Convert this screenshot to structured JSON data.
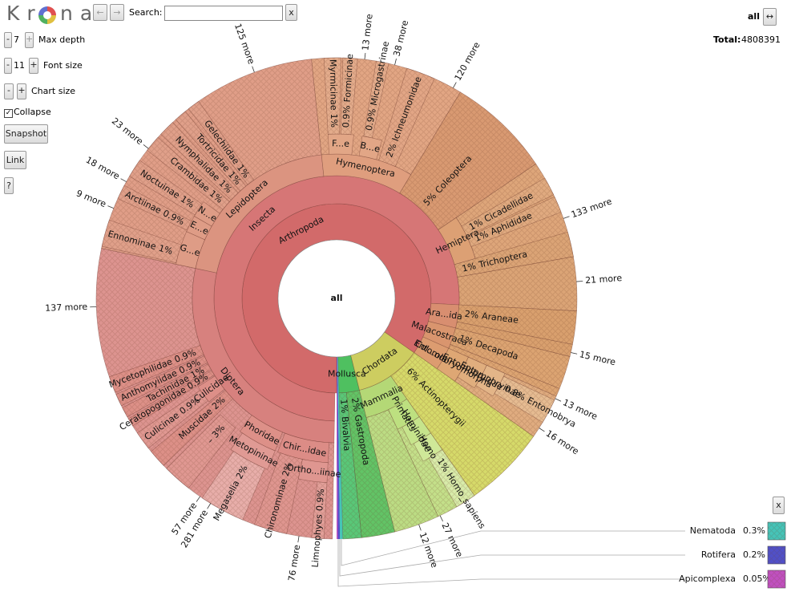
{
  "toolbar": {
    "logo_start": "Kr",
    "logo_end": "na",
    "back": "←",
    "forward": "→",
    "search_label": "Search:",
    "search_clear": "x",
    "root_button": "all",
    "zoom_toggle": "↔",
    "total_label": "Total:",
    "total_value": "4808391"
  },
  "controls": {
    "max_depth": {
      "minus": "-",
      "value": "7",
      "plus": "+",
      "label": "Max depth"
    },
    "font_size": {
      "minus": "-",
      "value": "11",
      "plus": "+",
      "label": "Font size"
    },
    "chart_size": {
      "minus": "-",
      "plus": "+",
      "label": "Chart size"
    },
    "collapse": "Collapse",
    "snapshot": "Snapshot",
    "link": "Link",
    "help": "?"
  },
  "chart": {
    "center": "all",
    "nodes": [
      {
        "label": "Arthropoda"
      },
      {
        "label": "Mollusca"
      },
      {
        "label": "Chordata"
      },
      {
        "label": "Insecta"
      },
      {
        "label": "Ara...ida"
      },
      {
        "label": "Malacostraca"
      },
      {
        "label": "Col...ola"
      },
      {
        "label": "Diptera"
      },
      {
        "label": "Lepidoptera"
      },
      {
        "label": "Hymenoptera"
      },
      {
        "label": "Coleoptera",
        "pct": "5%"
      },
      {
        "label": "Hemiptera"
      },
      {
        "label": "Trichoptera",
        "pct": "1%"
      },
      {
        "label": "Araneae",
        "pct": "2%"
      },
      {
        "label": "Decapoda",
        "pct": "1%"
      },
      {
        "label": "Entomobryomorpha"
      },
      {
        "label": "Entomobryidae"
      },
      {
        "label": "Entomobryinae"
      },
      {
        "label": "Entomobrya",
        "pct": "0.8%"
      },
      {
        "label": "Bivalvia",
        "pct": "1%"
      },
      {
        "label": "Gastropoda",
        "pct": "2%"
      },
      {
        "label": "Mammalia"
      },
      {
        "label": "Primates"
      },
      {
        "label": "Hominidae"
      },
      {
        "label": "Homo"
      },
      {
        "label": "Homo_sapiens",
        "pct": "1%"
      },
      {
        "label": "Actinopterygii",
        "pct": "6%"
      },
      {
        "label": "Culicidae"
      },
      {
        "label": "Phoridae"
      },
      {
        "label": "Metopininae"
      },
      {
        "label": "Megaselia",
        "pct": "2%"
      },
      {
        "label": "Chir...idae"
      },
      {
        "label": "Ortho...iinae"
      },
      {
        "label": "Chironominae",
        "pct": "2%"
      },
      {
        "label": "Limnophyes",
        "pct": "0.9%"
      },
      {
        "label": "Muscidae",
        "pct": "2%"
      },
      {
        "label": "Culicinae",
        "pct": "0.9%"
      },
      {
        "label": "Ceratopogonidae",
        "pct": "0.9%"
      },
      {
        "label": "Tachinidae",
        "pct": "1%"
      },
      {
        "label": "Anthomyiidae",
        "pct": "0.9%"
      },
      {
        "label": "Mycetophilidae",
        "pct": "0.9%"
      },
      {
        "label": "Ennominae",
        "pct": "1%"
      },
      {
        "label": "Arctiinae",
        "pct": "0.9%"
      },
      {
        "label": "Noctuinae",
        "pct": "1%"
      },
      {
        "label": "Crambidae",
        "pct": "1%"
      },
      {
        "label": "Nymphalidae",
        "pct": "1%"
      },
      {
        "label": "Tortricidae",
        "pct": "1%"
      },
      {
        "label": "Gelechiidae",
        "pct": "1%"
      },
      {
        "label": "G...e"
      },
      {
        "label": "E...e"
      },
      {
        "label": "N...e"
      },
      {
        "label": "F...e"
      },
      {
        "label": "B...e"
      },
      {
        "label": "Myrmicinae",
        "pct": "1%"
      },
      {
        "label": "Formicinae",
        "pct": "0.9%"
      },
      {
        "label": "Microgastrinae",
        "pct": "0.9%"
      },
      {
        "label": "Ichneumonidae",
        "pct": "2%"
      },
      {
        "label": "Cicadellidae",
        "pct": "1%"
      },
      {
        "label": "Aphididae",
        "pct": "1%"
      },
      {
        "label": "–",
        "pct": "3%"
      }
    ],
    "more": [
      "125 more",
      "120 more",
      "38 more",
      "13 more",
      "23 more",
      "18 more",
      "9 more",
      "137 more",
      "57 more",
      "281 more",
      "76 more",
      "12 more",
      "27 more",
      "16 more",
      "13 more",
      "15 more",
      "21 more",
      "133 more"
    ]
  },
  "legend": {
    "close": "x",
    "items": [
      {
        "label": "Nematoda",
        "pct": "0.3%"
      },
      {
        "label": "Rotifera",
        "pct": "0.2%"
      },
      {
        "label": "Apicomplexa",
        "pct": "0.05%"
      }
    ]
  }
}
